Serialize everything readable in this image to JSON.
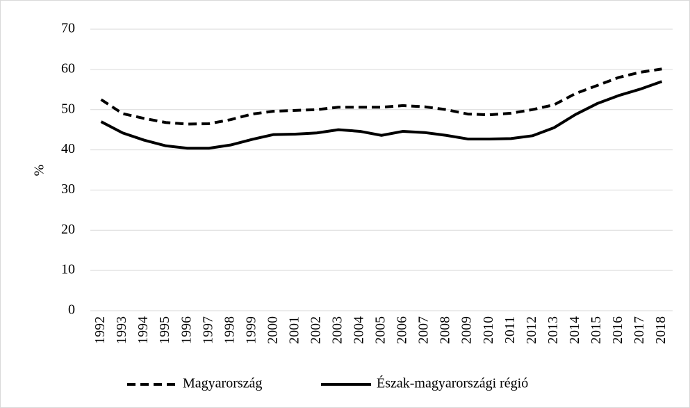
{
  "chart_data": {
    "type": "line",
    "y_label": "%",
    "categories": [
      "1992",
      "1993",
      "1994",
      "1995",
      "1996",
      "1997",
      "1998",
      "1999",
      "2000",
      "2001",
      "2002",
      "2003",
      "2004",
      "2005",
      "2006",
      "2007",
      "2008",
      "2009",
      "2010",
      "2011",
      "2012",
      "2013",
      "2014",
      "2015",
      "2016",
      "2017",
      "2018"
    ],
    "series": [
      {
        "name": "Magyarország",
        "color": "#000000",
        "line_style": "dashed",
        "values": [
          52.5,
          49,
          47.8,
          46.8,
          46.4,
          46.5,
          47.5,
          48.9,
          49.6,
          49.8,
          50,
          50.6,
          50.6,
          50.6,
          51,
          50.7,
          50,
          48.9,
          48.7,
          49.1,
          50,
          51.2,
          54,
          56,
          58,
          59.3,
          60.1
        ]
      },
      {
        "name": "Észak-magyarországi régió",
        "color": "#000000",
        "line_style": "solid",
        "values": [
          47,
          44.2,
          42.4,
          41,
          40.4,
          40.4,
          41.2,
          42.6,
          43.8,
          43.9,
          44.2,
          45,
          44.6,
          43.6,
          44.6,
          44.3,
          43.6,
          42.7,
          42.7,
          42.8,
          43.5,
          45.5,
          48.8,
          51.5,
          53.5,
          55.1,
          57
        ]
      }
    ],
    "ylim": [
      0,
      70
    ],
    "yticks": [
      0,
      10,
      20,
      30,
      40,
      50,
      60,
      70
    ],
    "grid": true,
    "legend": "bottom"
  }
}
